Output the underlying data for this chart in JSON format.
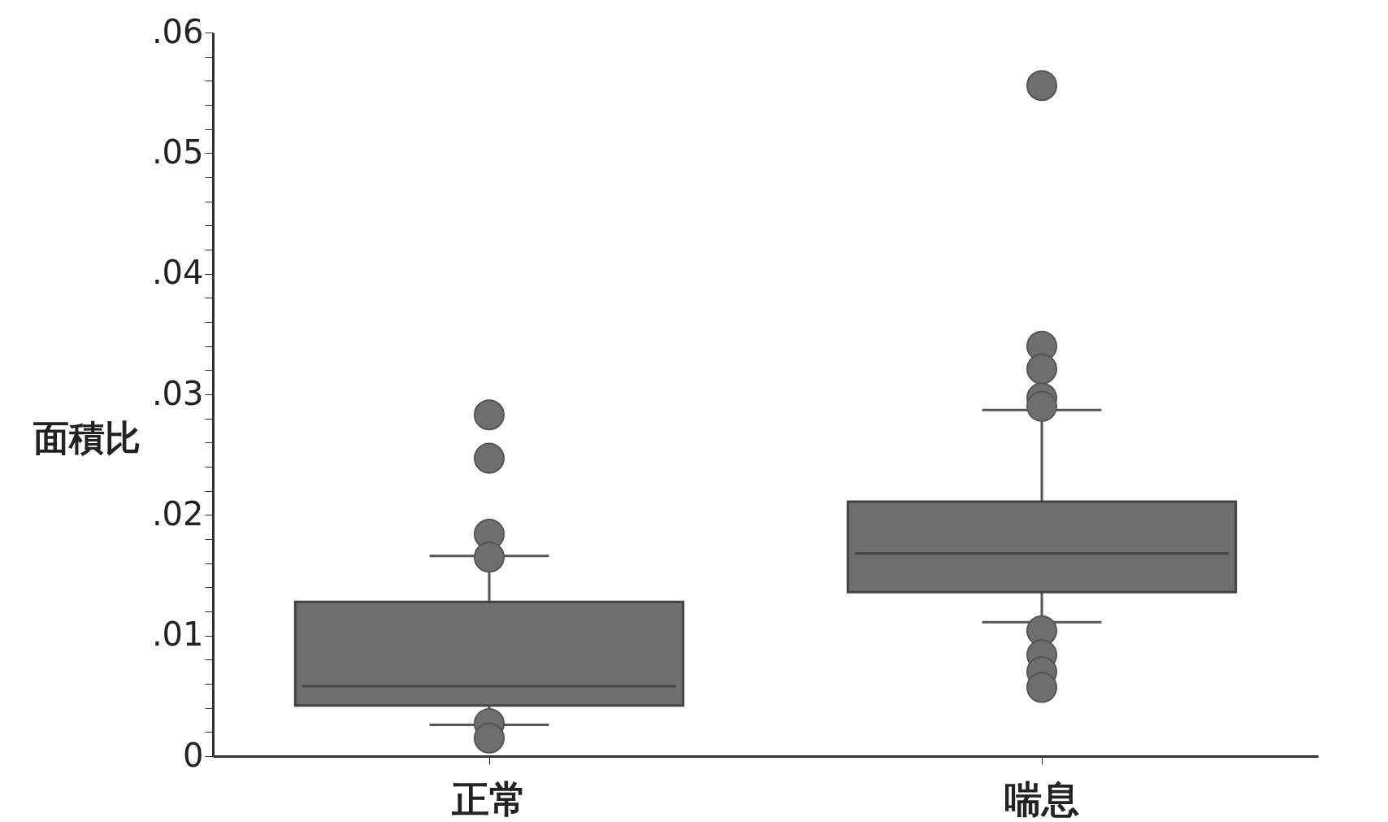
{
  "chart_data": {
    "type": "box",
    "ylabel": "面積比",
    "categories": [
      "正常",
      "喘息"
    ],
    "ylim": [
      0,
      0.06
    ],
    "yticks": [
      {
        "value": 0,
        "label": "0"
      },
      {
        "value": 0.002,
        "label": null
      },
      {
        "value": 0.004,
        "label": null
      },
      {
        "value": 0.006,
        "label": null
      },
      {
        "value": 0.008,
        "label": null
      },
      {
        "value": 0.01,
        "label": ".01"
      },
      {
        "value": 0.012,
        "label": null
      },
      {
        "value": 0.014,
        "label": null
      },
      {
        "value": 0.016,
        "label": null
      },
      {
        "value": 0.018,
        "label": null
      },
      {
        "value": 0.02,
        "label": ".02"
      },
      {
        "value": 0.022,
        "label": null
      },
      {
        "value": 0.024,
        "label": null
      },
      {
        "value": 0.026,
        "label": null
      },
      {
        "value": 0.028,
        "label": null
      },
      {
        "value": 0.03,
        "label": ".03"
      },
      {
        "value": 0.032,
        "label": null
      },
      {
        "value": 0.034,
        "label": null
      },
      {
        "value": 0.036,
        "label": null
      },
      {
        "value": 0.038,
        "label": null
      },
      {
        "value": 0.04,
        "label": ".04"
      },
      {
        "value": 0.042,
        "label": null
      },
      {
        "value": 0.044,
        "label": null
      },
      {
        "value": 0.046,
        "label": null
      },
      {
        "value": 0.048,
        "label": null
      },
      {
        "value": 0.05,
        "label": ".05"
      },
      {
        "value": 0.052,
        "label": null
      },
      {
        "value": 0.054,
        "label": null
      },
      {
        "value": 0.056,
        "label": null
      },
      {
        "value": 0.058,
        "label": null
      },
      {
        "value": 0.06,
        "label": ".06"
      }
    ],
    "grid": false,
    "color": "#6e6e6e",
    "boxes": [
      {
        "low": 0.0026,
        "q1": 0.0042,
        "median": 0.0058,
        "q3": 0.0128,
        "high": 0.0166,
        "outliers": [
          0.0283,
          0.0247,
          0.0184,
          0.0165,
          0.0027,
          0.0015
        ]
      },
      {
        "low": 0.0111,
        "q1": 0.0136,
        "median": 0.0168,
        "q3": 0.0211,
        "high": 0.0287,
        "outliers": [
          0.0556,
          0.034,
          0.0321,
          0.0297,
          0.029,
          0.0104,
          0.0084,
          0.007,
          0.0057
        ]
      }
    ]
  }
}
